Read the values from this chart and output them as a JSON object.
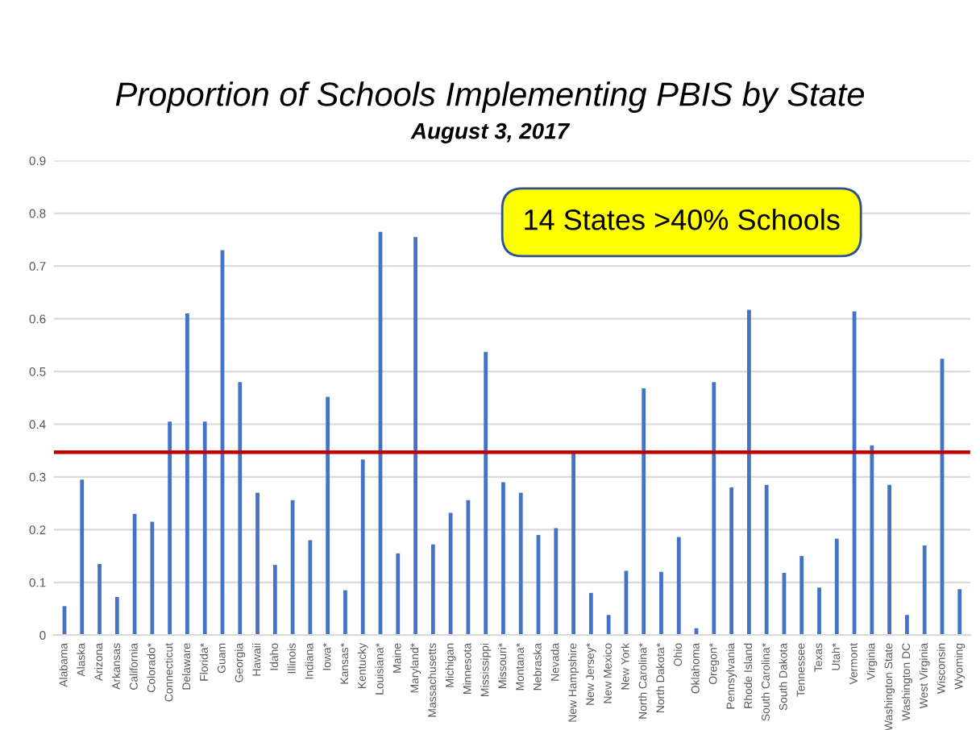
{
  "chart_data": {
    "type": "bar",
    "title": "Proportion of Schools Implementing PBIS by State",
    "subtitle": "August 3, 2017",
    "categories": [
      "Alabama",
      "Alaska",
      "Arizona",
      "Arkansas",
      "California",
      "Colorado*",
      "Connecticut",
      "Delaware",
      "Florida*",
      "Guam",
      "Georgia",
      "Hawaii",
      "Idaho",
      "Illinois",
      "Indiana",
      "Iowa*",
      "Kansas*",
      "Kentucky",
      "Louisiana*",
      "Maine",
      "Maryland*",
      "Massachusetts",
      "Michigan",
      "Minnesota",
      "Mississippi",
      "Missouri*",
      "Montana*",
      "Nebraska",
      "Nevada",
      "New Hampshire",
      "New Jersey*",
      "New Mexico",
      "New York",
      "North Carolina*",
      "North Dakota*",
      "Ohio",
      "Oklahoma",
      "Oregon*",
      "Pennsylvania",
      "Rhode Island",
      "South Carolina*",
      "South Dakota",
      "Tennessee",
      "Texas",
      "Utah*",
      "Vermont",
      "Virginia",
      "Washington State",
      "Washington DC",
      "West Virginia",
      "Wisconsin",
      "Wyoming"
    ],
    "values": [
      0.055,
      0.295,
      0.135,
      0.072,
      0.23,
      0.215,
      0.405,
      0.61,
      0.405,
      0.73,
      0.48,
      0.27,
      0.133,
      0.256,
      0.18,
      0.452,
      0.085,
      0.333,
      0.765,
      0.155,
      0.755,
      0.172,
      0.232,
      0.256,
      0.537,
      0.29,
      0.27,
      0.19,
      0.203,
      0.347,
      0.08,
      0.038,
      0.122,
      0.468,
      0.12,
      0.186,
      0.013,
      0.48,
      0.28,
      0.617,
      0.285,
      0.118,
      0.15,
      0.09,
      0.183,
      0.614,
      0.36,
      0.285,
      0.038,
      0.17,
      0.524,
      0.087
    ],
    "color": "#4472c4",
    "ylim": [
      0,
      0.9
    ],
    "yticks": [
      0,
      0.1,
      0.2,
      0.3,
      0.4,
      0.5,
      0.6,
      0.7,
      0.8,
      0.9
    ],
    "grid": "y",
    "ref_lines": [
      {
        "axis": "y",
        "value": 0.347,
        "color": "#c00000",
        "line_style": "solid"
      }
    ],
    "annotations": [
      "14 States >40% Schools"
    ]
  }
}
